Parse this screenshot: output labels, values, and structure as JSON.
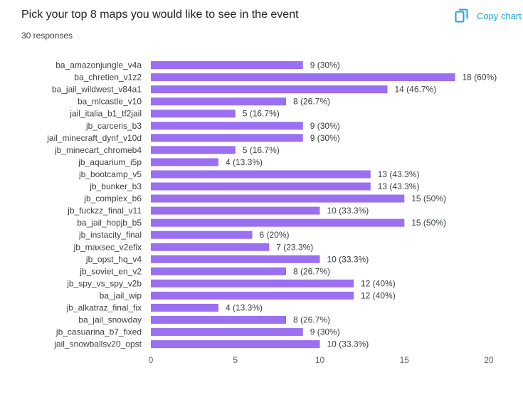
{
  "header": {
    "title": "Pick your top 8 maps you would like to see in the event",
    "responses": "30 responses",
    "copy_label": "Copy chart"
  },
  "colors": {
    "bar": "#9b6ff2",
    "accent": "#1aa6d8",
    "text": "#202124",
    "muted": "#5f6368"
  },
  "chart_data": {
    "type": "bar",
    "orientation": "horizontal",
    "categories": [
      "ba_amazonjungle_v4a",
      "ba_chretien_v1z2",
      "ba_jail_wildwest_v84a1",
      "ba_mlcastle_v10",
      "jail_italia_b1_tf2jail",
      "jb_carceris_b3",
      "jail_minecraft_dynf_v10d",
      "jb_minecart_chromeb4",
      "jb_aquarium_i5p",
      "jb_bootcamp_v5",
      "jb_bunker_b3",
      "jb_complex_b6",
      "jb_fuckzz_final_v11",
      "ba_jail_hopjb_b5",
      "jb_instacity_final",
      "jb_maxsec_v2efix",
      "jb_opst_hq_v4",
      "jb_soviet_en_v2",
      "jb_spy_vs_spy_v2b",
      "ba_jail_wip",
      "jb_alkatraz_final_fix",
      "ba_jail_snowday",
      "jb_casuarina_b7_fixed",
      "jail_snowballsv20_opst"
    ],
    "values": [
      9,
      18,
      14,
      8,
      5,
      9,
      9,
      5,
      4,
      13,
      13,
      15,
      10,
      15,
      6,
      7,
      10,
      8,
      12,
      12,
      4,
      8,
      9,
      10
    ],
    "labels": [
      "9 (30%)",
      "18 (60%)",
      "14 (46.7%)",
      "8 (26.7%)",
      "5 (16.7%)",
      "9 (30%)",
      "9 (30%)",
      "5 (16.7%)",
      "4 (13.3%)",
      "13 (43.3%)",
      "13 (43.3%)",
      "15 (50%)",
      "10 (33.3%)",
      "15 (50%)",
      "6 (20%)",
      "7 (23.3%)",
      "10 (33.3%)",
      "8 (26.7%)",
      "12 (40%)",
      "12 (40%)",
      "4 (13.3%)",
      "8 (26.7%)",
      "9 (30%)",
      "10 (33.3%)"
    ],
    "xlim": [
      0,
      20
    ],
    "xticks": [
      "0",
      "5",
      "10",
      "15",
      "20"
    ],
    "grid": false,
    "legend": "none"
  }
}
